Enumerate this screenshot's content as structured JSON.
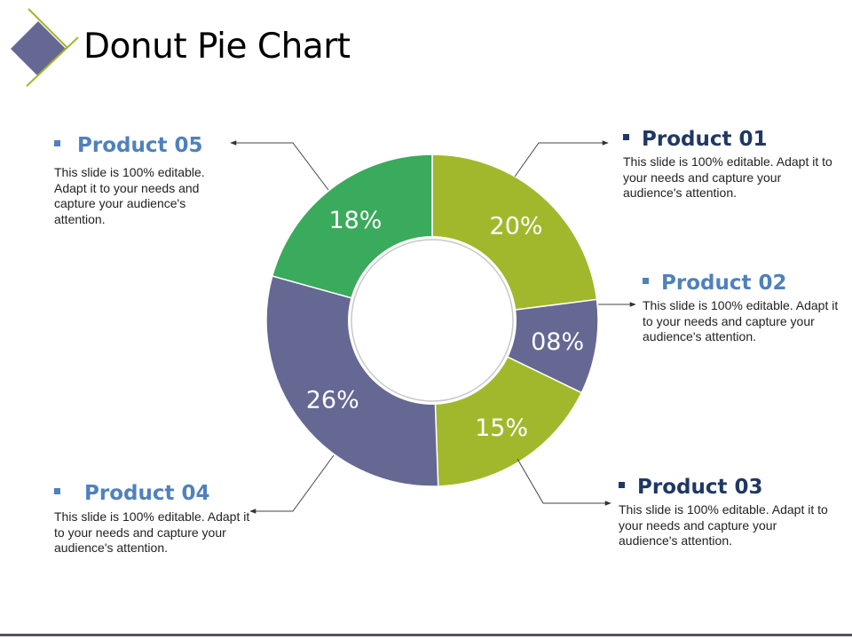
{
  "title": "Donut Pie Chart",
  "colors": {
    "accent_blue": "#4f81bd",
    "heading_dark": "#1f3864",
    "green": "#3aaa5c",
    "lime": "#a2b82c",
    "purple": "#656893",
    "logo_diamond": "#656893",
    "logo_lines": "#a2b82c"
  },
  "chart_data": {
    "type": "pie",
    "variant": "donut",
    "categories": [
      "Product 01",
      "Product 02",
      "Product 03",
      "Product 04",
      "Product 05"
    ],
    "values": [
      20,
      8,
      15,
      26,
      18
    ],
    "labels": [
      "20%",
      "08%",
      "15%",
      "26%",
      "18%"
    ],
    "colors": [
      "#a2b82c",
      "#656893",
      "#a2b82c",
      "#656893",
      "#3aaa5c"
    ]
  },
  "products": [
    {
      "title": "Product 01",
      "desc": "This slide is 100% editable. Adapt it to your needs and capture your audience's attention."
    },
    {
      "title": "Product 02",
      "desc": "This slide is 100% editable. Adapt it to your needs and capture your audience's attention."
    },
    {
      "title": "Product 03",
      "desc": "This slide is 100% editable. Adapt it to your needs and capture your audience's attention."
    },
    {
      "title": "Product 04",
      "desc": "This slide is 100% editable. Adapt it to your needs and capture your audience's attention."
    },
    {
      "title": "Product 05",
      "desc": "This slide is 100% editable. Adapt it to your needs and capture your audience's attention."
    }
  ]
}
